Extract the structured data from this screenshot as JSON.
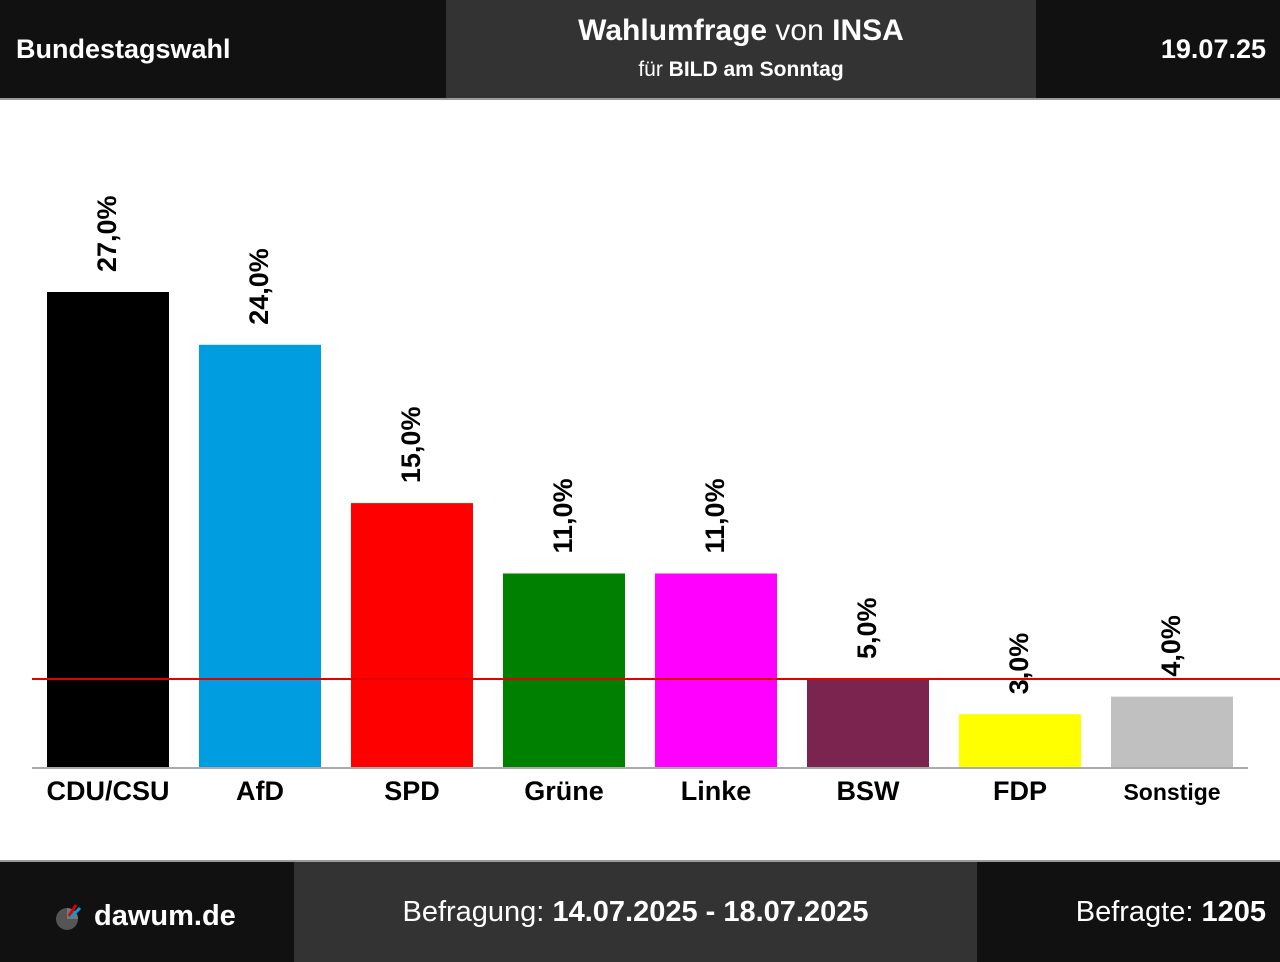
{
  "header": {
    "left": "Bundestagswahl",
    "title_bold": "Wahlumfrage",
    "title_mid": " von ",
    "title_institute": "INSA",
    "subtitle_prefix": "für ",
    "subtitle_client": "BILD am Sonntag",
    "date": "19.07.25"
  },
  "footer": {
    "site": "dawum.de",
    "period_label": "Befragung: ",
    "period_value": "14.07.2025 - 18.07.2025",
    "respondents_label": "Befragte: ",
    "respondents_value": "1205"
  },
  "icons": {
    "logo": "dawum-pie-logo-icon"
  },
  "colors": {
    "header_bg": "#111111",
    "header_center_bg": "#333333",
    "threshold_line": "#e00000"
  },
  "chart_data": {
    "type": "bar",
    "categories": [
      "CDU/CSU",
      "AfD",
      "SPD",
      "Grüne",
      "Linke",
      "BSW",
      "FDP",
      "Sonstige"
    ],
    "values": [
      27.0,
      24.0,
      15.0,
      11.0,
      11.0,
      5.0,
      3.0,
      4.0
    ],
    "value_labels": [
      "27,0%",
      "24,0%",
      "15,0%",
      "11,0%",
      "11,0%",
      "5,0%",
      "3,0%",
      "4,0%"
    ],
    "colors": [
      "#000000",
      "#009ee0",
      "#ff0000",
      "#008000",
      "#ff00ff",
      "#7b2450",
      "#ffff00",
      "#c0c0c0"
    ],
    "threshold": 5.0,
    "ylim": [
      0,
      27.0
    ],
    "grid": false,
    "legend": "none"
  }
}
